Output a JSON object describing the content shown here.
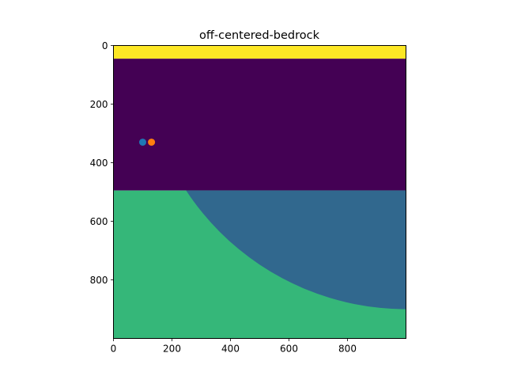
{
  "chart_data": {
    "type": "heatmap",
    "title": "off-centered-bedrock",
    "xlabel": "",
    "ylabel": "",
    "xlim": [
      0,
      1000
    ],
    "ylim": [
      1000,
      0
    ],
    "y_inverted": true,
    "grid": false,
    "x_ticks": [
      0,
      200,
      400,
      600,
      800
    ],
    "y_ticks": [
      0,
      200,
      400,
      600,
      800
    ],
    "x_tick_labels": [
      "0",
      "200",
      "400",
      "600",
      "800"
    ],
    "y_tick_labels": [
      "0",
      "200",
      "400",
      "600",
      "800"
    ],
    "layers": [
      {
        "name": "top",
        "y_from": 0,
        "y_to": 45,
        "color": "#fde725"
      },
      {
        "name": "middle",
        "y_from": 45,
        "y_to": 495,
        "color": "#440154"
      },
      {
        "name": "lower",
        "y_from": 495,
        "y_to": 1000,
        "color": "#35b779"
      }
    ],
    "bedrock": {
      "shape": "circle",
      "center": [
        1000,
        0
      ],
      "radius": 900,
      "clip_y_from": 495,
      "color": "#31688e"
    },
    "points": [
      {
        "x": 100,
        "y": 330,
        "color": "#1f77b4"
      },
      {
        "x": 130,
        "y": 330,
        "color": "#ff7f0e"
      }
    ]
  }
}
